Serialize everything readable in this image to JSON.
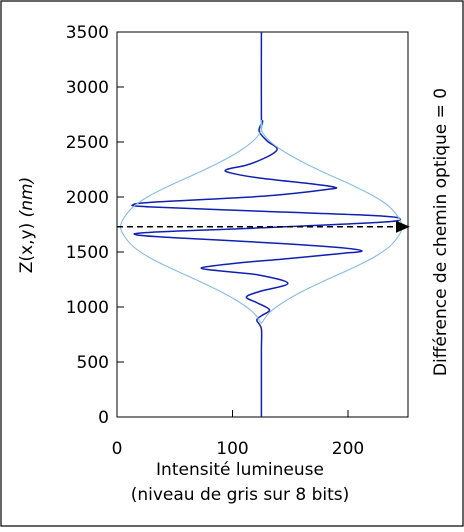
{
  "chart_data": {
    "type": "line",
    "xlabel": "Intensité lumineuse",
    "xlabel_line2": "(niveau de gris sur 8 bits)",
    "ylabel_main": "Z(x,y) ",
    "ylabel_unit": "(nm)",
    "annotation": "Différence de chemin optique  = 0",
    "xlim": [
      0,
      250
    ],
    "ylim": [
      0,
      3500
    ],
    "x_ticks": [
      "0",
      "100",
      "200"
    ],
    "y_ticks": [
      "0",
      "500",
      "1000",
      "1500",
      "2000",
      "2500",
      "3000",
      "3500"
    ],
    "grid": false,
    "reference_z": 1730,
    "series": [
      {
        "role": "signal",
        "color": "#1020b0",
        "points": [
          [
            125,
            0
          ],
          [
            125,
            600
          ],
          [
            125,
            800
          ],
          [
            121,
            880
          ],
          [
            125,
            920
          ],
          [
            132,
            975
          ],
          [
            121,
            1040
          ],
          [
            112,
            1090
          ],
          [
            123,
            1140
          ],
          [
            148,
            1215
          ],
          [
            123,
            1290
          ],
          [
            97,
            1320
          ],
          [
            73,
            1355
          ],
          [
            105,
            1400
          ],
          [
            148,
            1440
          ],
          [
            192,
            1485
          ],
          [
            212,
            1510
          ],
          [
            188,
            1545
          ],
          [
            130,
            1585
          ],
          [
            50,
            1630
          ],
          [
            17,
            1655
          ],
          [
            30,
            1680
          ],
          [
            125,
            1720
          ],
          [
            228,
            1770
          ],
          [
            245,
            1800
          ],
          [
            225,
            1830
          ],
          [
            125,
            1870
          ],
          [
            28,
            1910
          ],
          [
            14,
            1930
          ],
          [
            35,
            1955
          ],
          [
            130,
            2010
          ],
          [
            183,
            2070
          ],
          [
            188,
            2090
          ],
          [
            168,
            2120
          ],
          [
            125,
            2170
          ],
          [
            98,
            2220
          ],
          [
            95,
            2250
          ],
          [
            112,
            2290
          ],
          [
            127,
            2350
          ],
          [
            137,
            2410
          ],
          [
            138,
            2450
          ],
          [
            130,
            2510
          ],
          [
            123,
            2600
          ],
          [
            126,
            2690
          ],
          [
            125,
            2720
          ],
          [
            125,
            3500
          ]
        ]
      },
      {
        "role": "envelope-right",
        "color": "#86bce8",
        "points": [
          [
            125,
            850
          ],
          [
            132,
            950
          ],
          [
            145,
            1050
          ],
          [
            162,
            1150
          ],
          [
            182,
            1250
          ],
          [
            203,
            1350
          ],
          [
            222,
            1450
          ],
          [
            236,
            1550
          ],
          [
            244,
            1650
          ],
          [
            247,
            1730
          ],
          [
            244,
            1810
          ],
          [
            236,
            1910
          ],
          [
            222,
            2010
          ],
          [
            203,
            2110
          ],
          [
            182,
            2210
          ],
          [
            162,
            2310
          ],
          [
            145,
            2410
          ],
          [
            132,
            2510
          ],
          [
            125,
            2610
          ],
          [
            125,
            2700
          ]
        ]
      },
      {
        "role": "envelope-left",
        "color": "#86bce8",
        "points": [
          [
            125,
            850
          ],
          [
            118,
            950
          ],
          [
            105,
            1050
          ],
          [
            88,
            1150
          ],
          [
            68,
            1250
          ],
          [
            47,
            1350
          ],
          [
            28,
            1450
          ],
          [
            14,
            1550
          ],
          [
            6,
            1650
          ],
          [
            3,
            1730
          ],
          [
            6,
            1810
          ],
          [
            14,
            1910
          ],
          [
            28,
            2010
          ],
          [
            47,
            2110
          ],
          [
            68,
            2210
          ],
          [
            88,
            2310
          ],
          [
            105,
            2410
          ],
          [
            118,
            2510
          ],
          [
            125,
            2610
          ],
          [
            125,
            2700
          ]
        ]
      }
    ]
  }
}
